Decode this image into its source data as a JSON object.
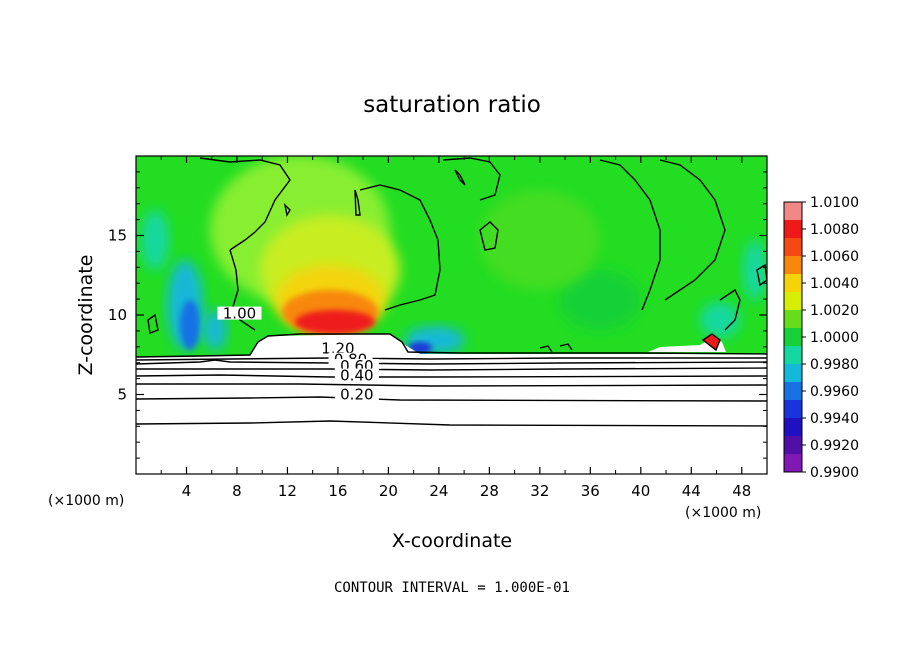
{
  "chart_data": {
    "type": "heatmap",
    "title": "saturation ratio",
    "xlabel": "X-coordinate",
    "ylabel": "Z-coordinate",
    "x_unit_left": "(×1000 m)",
    "x_unit_right": "(×1000 m)",
    "xlim": [
      0,
      50
    ],
    "ylim": [
      0,
      20
    ],
    "x_ticks": [
      4,
      8,
      12,
      16,
      20,
      24,
      28,
      32,
      36,
      40,
      44,
      48
    ],
    "y_ticks": [
      5,
      10,
      15
    ],
    "footer": "CONTOUR INTERVAL = 1.000E-01",
    "colorbar": {
      "labels": [
        "1.0100",
        "1.0080",
        "1.0060",
        "1.0040",
        "1.0020",
        "1.0000",
        "0.9980",
        "0.9960",
        "0.9940",
        "0.9920",
        "0.9900"
      ],
      "min": 0.99,
      "max": 1.01,
      "colors": [
        "#f08888",
        "#ee1a1a",
        "#f24a12",
        "#f8880c",
        "#f4d408",
        "#d6ee06",
        "#66dd1c",
        "#18d038",
        "#14d8a0",
        "#14b8d8",
        "#1872e4",
        "#1a34dc",
        "#2010c0",
        "#5010a8",
        "#8018b4"
      ]
    },
    "contour_labels": [
      {
        "value": "1.20",
        "x": 16.0,
        "y": 7.7
      },
      {
        "value": "0.80",
        "x": 17.0,
        "y": 7.0
      },
      {
        "value": "0.60",
        "x": 17.5,
        "y": 6.6
      },
      {
        "value": "0.40",
        "x": 17.5,
        "y": 6.0
      },
      {
        "value": "0.20",
        "x": 17.5,
        "y": 4.8
      },
      {
        "value": "1.00",
        "x": 8.2,
        "y": 9.9
      }
    ]
  }
}
